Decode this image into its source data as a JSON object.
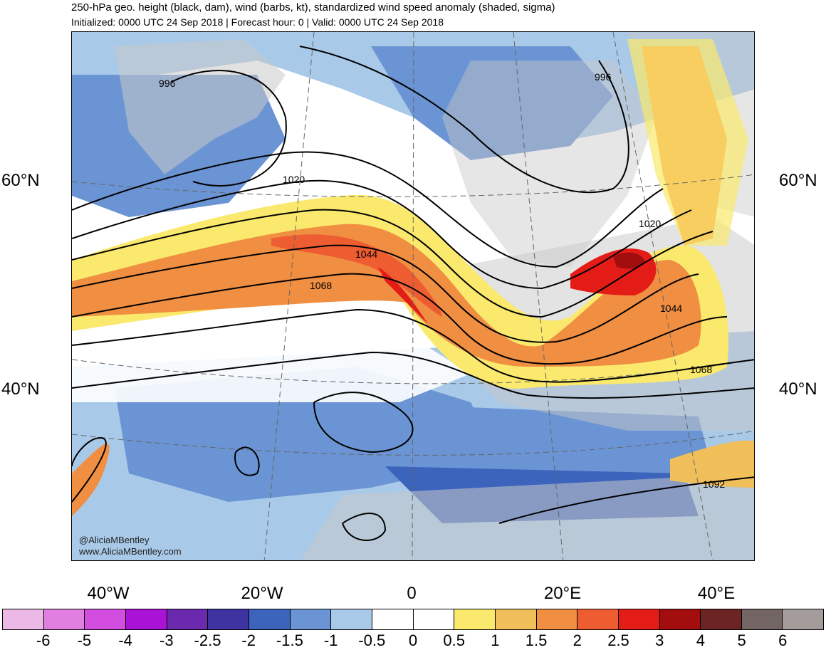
{
  "title": "250-hPa geo. height (black, dam), wind (barbs, kt), standardized wind speed anomaly (shaded, sigma)",
  "subtitle": "Initialized: 0000 UTC 24 Sep 2018 | Forecast hour: 0 | Valid: 0000 UTC 24 Sep 2018",
  "lat_labels": [
    "60°N",
    "40°N"
  ],
  "lon_labels": [
    "40°W",
    "20°W",
    "0",
    "20°E",
    "40°E"
  ],
  "contour_labels": [
    "996",
    "996",
    "1020",
    "1020",
    "1044",
    "1044",
    "1068",
    "1068",
    "1092"
  ],
  "watermark": {
    "handle": "@AliciaMBentley",
    "url": "www.AliciaMBentley.com"
  },
  "colorbar": {
    "colors": [
      "#ecb8e6",
      "#e17fe0",
      "#d24de0",
      "#aa12d6",
      "#6b2aad",
      "#3f33a2",
      "#3c64bd",
      "#6a94d3",
      "#a8c9e8",
      "#ffffff",
      "#ffffff",
      "#fae96c",
      "#f1bf5a",
      "#f08e42",
      "#ee5d32",
      "#e31c17",
      "#a20e0e",
      "#6c2424",
      "#726563",
      "#a49b9b"
    ],
    "ticks": [
      "-6",
      "-5",
      "-4",
      "-3",
      "-2.5",
      "-2",
      "-1.5",
      "-1",
      "-0.5",
      "0",
      "0.5",
      "1",
      "1.5",
      "2",
      "2.5",
      "3",
      "4",
      "5",
      "6"
    ]
  },
  "colors": {
    "land": "#c8c8c8",
    "contour": "#000000",
    "jet_core": "#e31c17",
    "jet_mid": "#f08e42",
    "jet_edge": "#fae96c",
    "neg_light": "#a8c9e8",
    "neg_mid": "#6a94d3",
    "neg_strong": "#3c64bd"
  }
}
